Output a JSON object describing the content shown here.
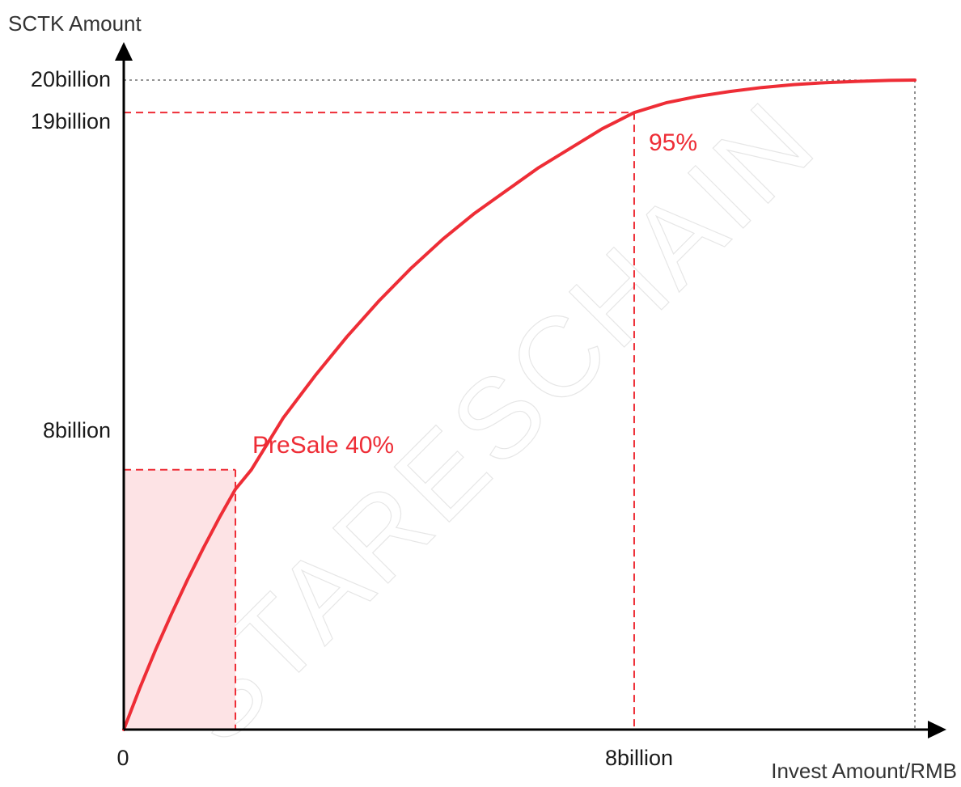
{
  "chart_data": {
    "type": "line",
    "ylabel": "SCTK Amount",
    "xlabel": "Invest Amount/RMB",
    "y_ticks": [
      "20billion",
      "19billion",
      "8billion"
    ],
    "x_ticks": [
      "0",
      "8billion"
    ],
    "y_tick_values": [
      20,
      19,
      8
    ],
    "x_tick_values": [
      0,
      8
    ],
    "xlim": [
      0,
      12.4
    ],
    "ylim": [
      0,
      20
    ],
    "series": [
      {
        "x": [
          0,
          0.25,
          0.5,
          0.75,
          1,
          1.25,
          1.5,
          1.75,
          2,
          2.5,
          3,
          3.5,
          4,
          4.5,
          5,
          5.5,
          6,
          6.5,
          7,
          7.5,
          8,
          8.5,
          9,
          9.5,
          10,
          10.5,
          11,
          11.5,
          12,
          12.4
        ],
        "y": [
          0,
          1.27,
          2.46,
          3.57,
          4.62,
          5.6,
          6.53,
          7.4,
          8.0,
          9.6,
          10.9,
          12.1,
          13.2,
          14.2,
          15.1,
          15.9,
          16.6,
          17.3,
          17.9,
          18.5,
          19.0,
          19.3,
          19.5,
          19.65,
          19.77,
          19.86,
          19.92,
          19.96,
          19.99,
          20.0
        ]
      }
    ],
    "annotations": [
      {
        "text": "PreSale 40%",
        "x": 1.75,
        "y": 8
      },
      {
        "text": "95%",
        "x": 8,
        "y": 19
      }
    ],
    "shaded_region": {
      "x": [
        0,
        1.75
      ],
      "y": [
        0,
        8
      ]
    },
    "watermark": "STARESCHAIN",
    "colors": {
      "curve": "#ee2d36",
      "guide": "#ee2d36",
      "fill": "#fde3e5",
      "axis": "#000000",
      "dotted": "#555555",
      "annotation": "#ee2d36"
    },
    "grid": false
  }
}
